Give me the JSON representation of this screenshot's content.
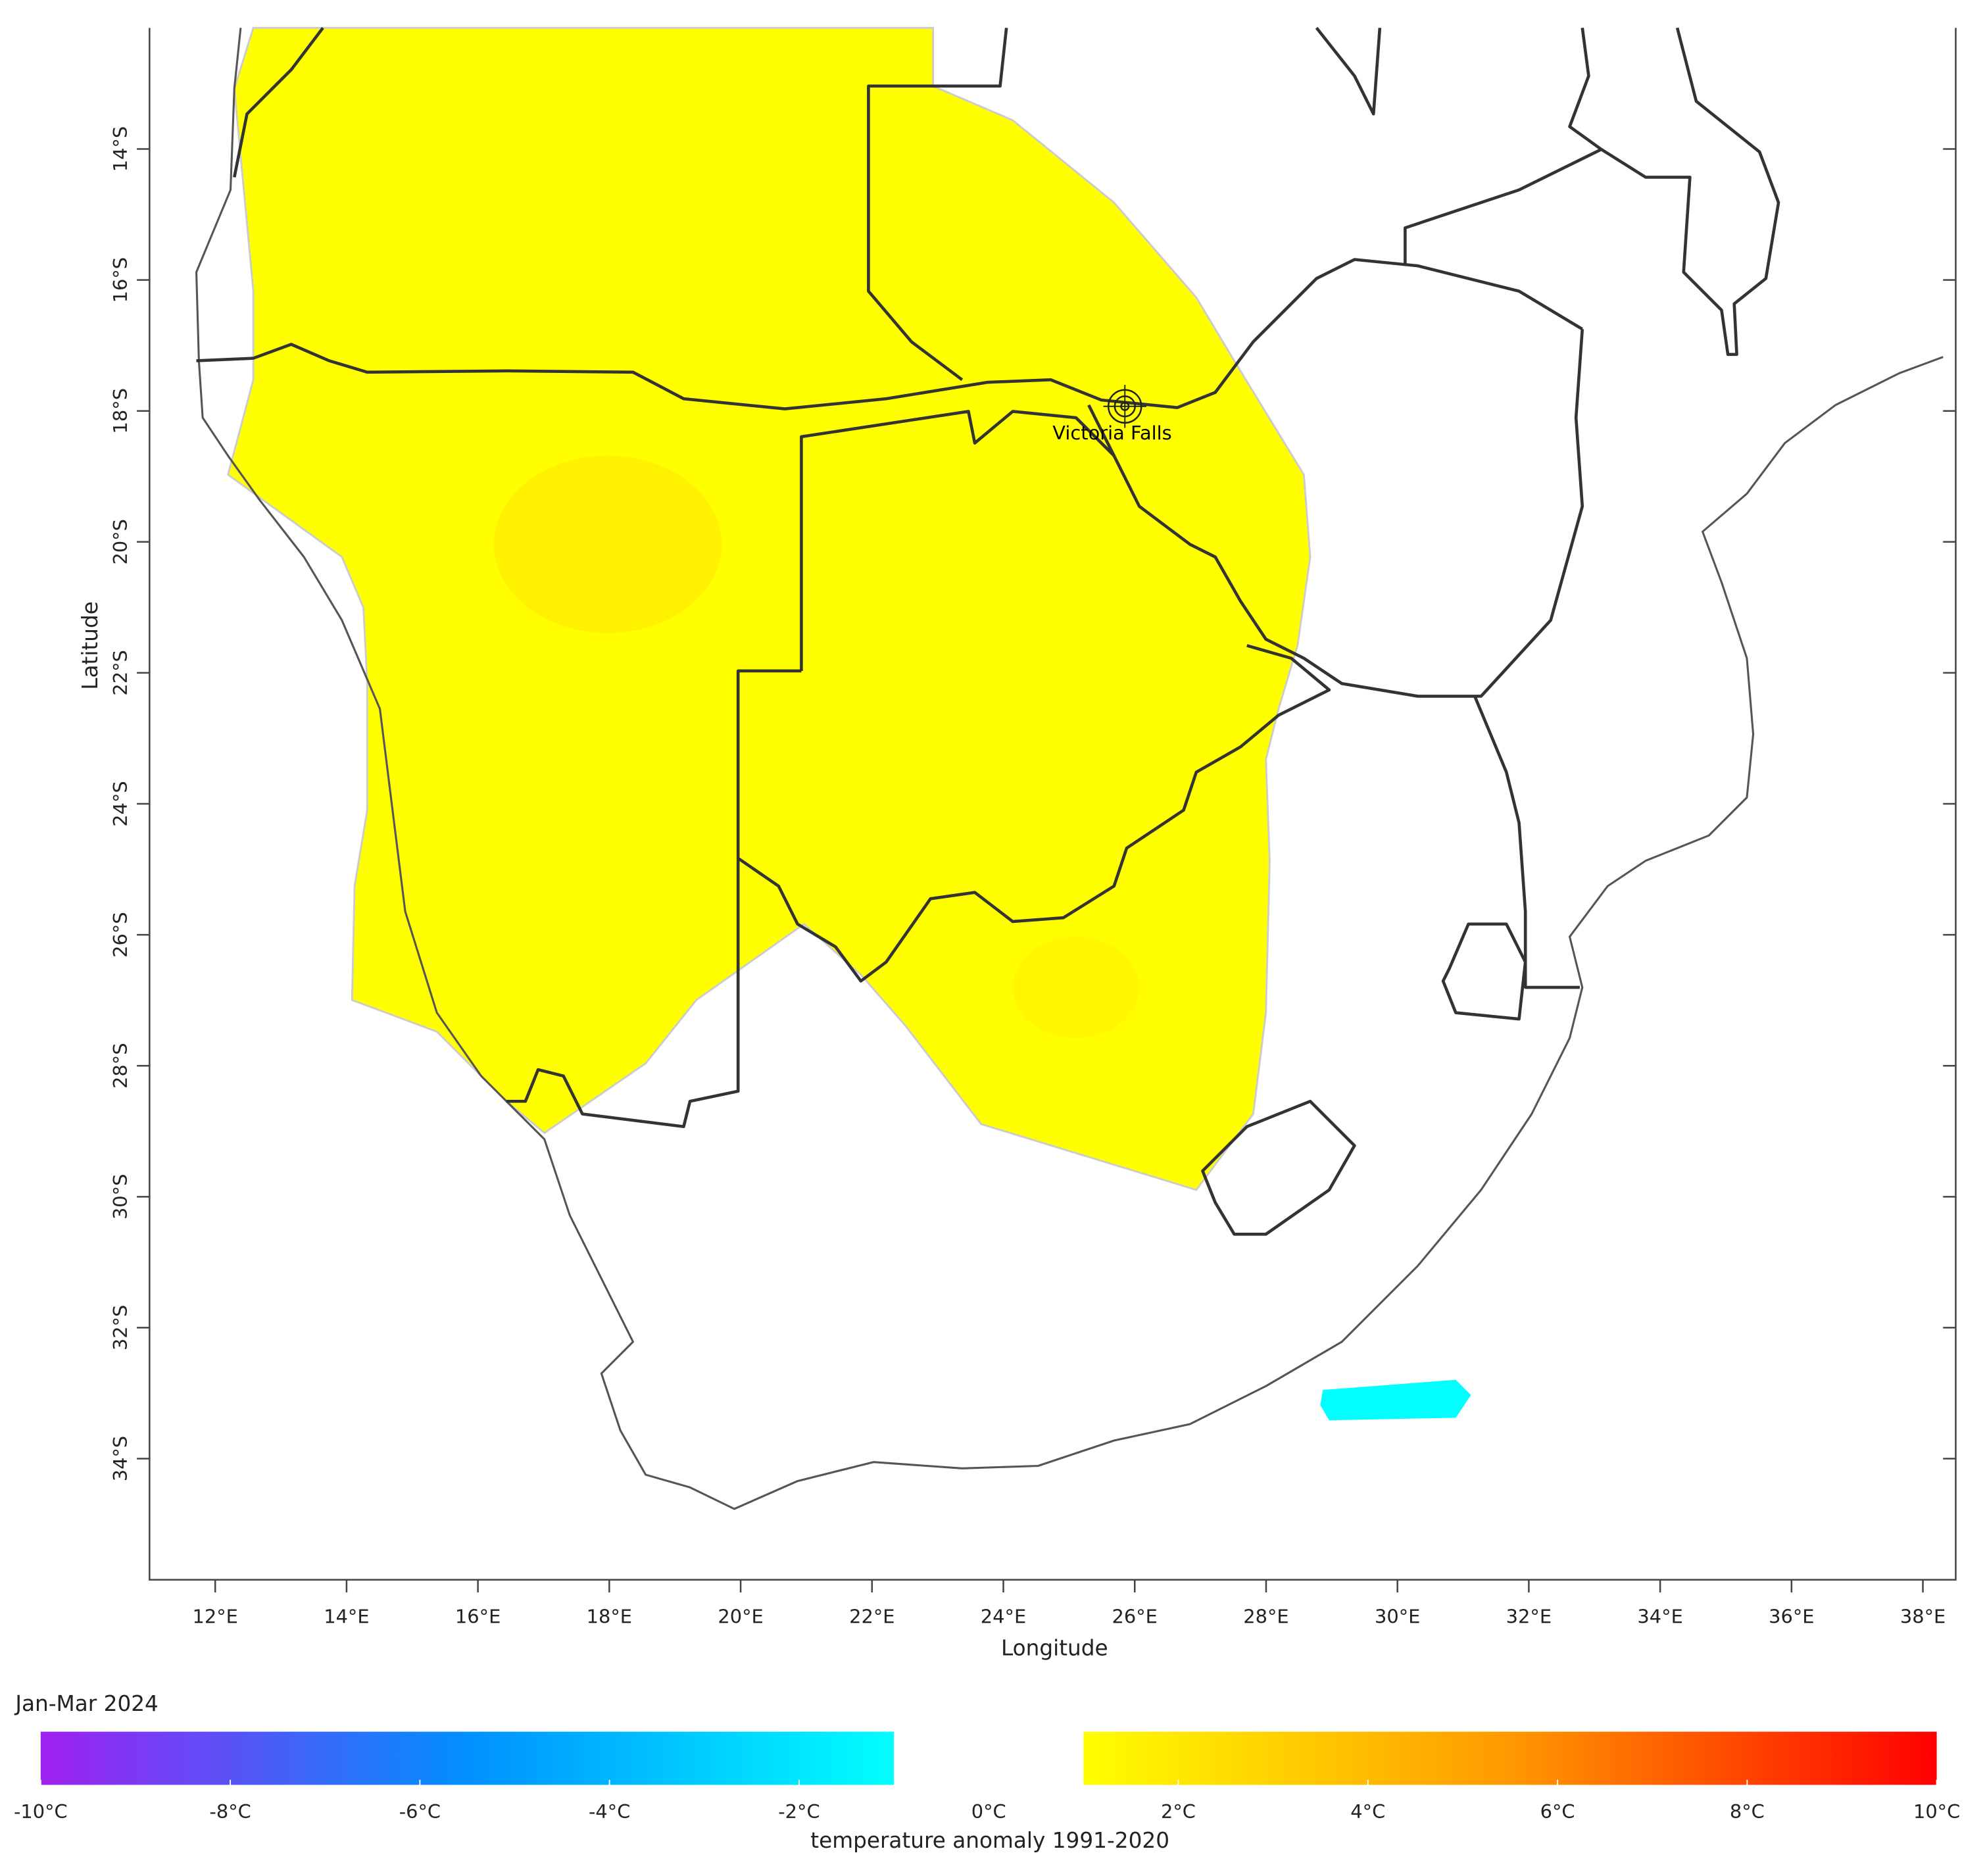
{
  "map": {
    "type": "map",
    "xlim": [
      11,
      38.5
    ],
    "ylim": [
      -35.85,
      -12.15
    ],
    "xticks": [
      {
        "value": 12,
        "label": "12°E"
      },
      {
        "value": 14,
        "label": "14°E"
      },
      {
        "value": 16,
        "label": "16°E"
      },
      {
        "value": 18,
        "label": "18°E"
      },
      {
        "value": 20,
        "label": "20°E"
      },
      {
        "value": 22,
        "label": "22°E"
      },
      {
        "value": 24,
        "label": "24°E"
      },
      {
        "value": 26,
        "label": "26°E"
      },
      {
        "value": 28,
        "label": "28°E"
      },
      {
        "value": 30,
        "label": "30°E"
      },
      {
        "value": 32,
        "label": "32°E"
      },
      {
        "value": 34,
        "label": "34°E"
      },
      {
        "value": 36,
        "label": "36°E"
      },
      {
        "value": 38,
        "label": "38°E"
      }
    ],
    "yticks": [
      {
        "value": -14,
        "label": "14°S"
      },
      {
        "value": -16,
        "label": "16°S"
      },
      {
        "value": -18,
        "label": "18°S"
      },
      {
        "value": -20,
        "label": "20°S"
      },
      {
        "value": -22,
        "label": "22°S"
      },
      {
        "value": -24,
        "label": "24°S"
      },
      {
        "value": -26,
        "label": "26°S"
      },
      {
        "value": -28,
        "label": "28°S"
      },
      {
        "value": -30,
        "label": "30°S"
      },
      {
        "value": -32,
        "label": "32°S"
      },
      {
        "value": -34,
        "label": "34°S"
      }
    ],
    "x_label": "Longitude",
    "y_label": "Latitude",
    "places": [
      {
        "name": "Victoria Falls",
        "lon": 25.85,
        "lat": -17.93
      }
    ],
    "colorbar": {
      "title": "Jan-Mar 2024",
      "label": "temperature anomaly 1991-2020",
      "lim": [
        -10,
        10
      ],
      "ticks": [
        {
          "value": -10,
          "label": "-10°C"
        },
        {
          "value": -8,
          "label": "-8°C"
        },
        {
          "value": -6,
          "label": "-6°C"
        },
        {
          "value": -4,
          "label": "-4°C"
        },
        {
          "value": -2,
          "label": "-2°C"
        },
        {
          "value": 0,
          "label": "0°C"
        },
        {
          "value": 2,
          "label": "2°C"
        },
        {
          "value": 4,
          "label": "4°C"
        },
        {
          "value": 6,
          "label": "6°C"
        },
        {
          "value": 8,
          "label": "8°C"
        },
        {
          "value": 10,
          "label": "10°C"
        }
      ],
      "segments": [
        {
          "range": [
            -10,
            -1
          ],
          "colors": [
            "#a020f0",
            "#0090ff",
            "#00ffff"
          ]
        },
        {
          "range": [
            1,
            10
          ],
          "colors": [
            "#ffff00",
            "#ff9900",
            "#ff0000"
          ]
        }
      ]
    }
  }
}
